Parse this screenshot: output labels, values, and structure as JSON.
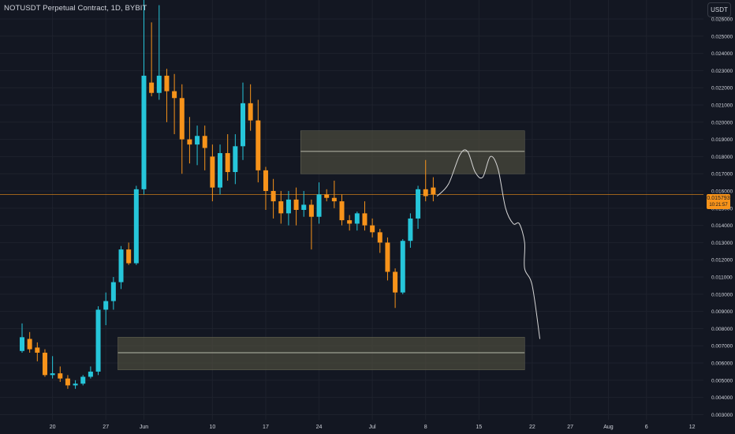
{
  "header": {
    "symbol_title": "NOTUSDT Perpetual Contract, 1D, BYBIT",
    "currency": "USDT"
  },
  "price_tag": {
    "price": "0.015793",
    "countdown": "10:21:57"
  },
  "colors": {
    "background": "#131722",
    "grid": "#1e222d",
    "bullish": "#26c6da",
    "bearish": "#f7931a",
    "zone_fill": "#4a4a3c",
    "zone_midline": "#e0e0d0",
    "projection": "#d6d6d6",
    "last_price_line": "#f7931a"
  },
  "chart_data": {
    "type": "candlestick",
    "interval": "1D",
    "start_date": "2024-05-16",
    "ylim": [
      0.0027,
      0.0271
    ],
    "y_ticks": [
      "0.003000",
      "0.004000",
      "0.005000",
      "0.006000",
      "0.007000",
      "0.008000",
      "0.009000",
      "0.010000",
      "0.011000",
      "0.012000",
      "0.013000",
      "0.014000",
      "0.015000",
      "0.016000",
      "0.017000",
      "0.018000",
      "0.019000",
      "0.020000",
      "0.021000",
      "0.022000",
      "0.023000",
      "0.024000",
      "0.025000",
      "0.026000"
    ],
    "x_ticks": [
      {
        "label": "20",
        "date": "2024-05-20"
      },
      {
        "label": "27",
        "date": "2024-05-27"
      },
      {
        "label": "Jun",
        "date": "2024-06-01"
      },
      {
        "label": "10",
        "date": "2024-06-10"
      },
      {
        "label": "17",
        "date": "2024-06-17"
      },
      {
        "label": "24",
        "date": "2024-06-24"
      },
      {
        "label": "Jul",
        "date": "2024-07-01"
      },
      {
        "label": "8",
        "date": "2024-07-08"
      },
      {
        "label": "15",
        "date": "2024-07-15"
      },
      {
        "label": "22",
        "date": "2024-07-22"
      },
      {
        "label": "27",
        "date": "2024-07-27"
      },
      {
        "label": "Aug",
        "date": "2024-08-01"
      },
      {
        "label": "6",
        "date": "2024-08-06"
      },
      {
        "label": "12",
        "date": "2024-08-12"
      }
    ],
    "candles": [
      {
        "o": 0.0067,
        "h": 0.0083,
        "l": 0.0066,
        "c": 0.0075
      },
      {
        "o": 0.0074,
        "h": 0.0078,
        "l": 0.0066,
        "c": 0.0068
      },
      {
        "o": 0.0069,
        "h": 0.0072,
        "l": 0.0061,
        "c": 0.0066
      },
      {
        "o": 0.0066,
        "h": 0.0068,
        "l": 0.0052,
        "c": 0.0053
      },
      {
        "o": 0.0053,
        "h": 0.0064,
        "l": 0.0051,
        "c": 0.0054
      },
      {
        "o": 0.0054,
        "h": 0.0058,
        "l": 0.0049,
        "c": 0.0051
      },
      {
        "o": 0.0051,
        "h": 0.0053,
        "l": 0.0045,
        "c": 0.0047
      },
      {
        "o": 0.0047,
        "h": 0.005,
        "l": 0.0045,
        "c": 0.0048
      },
      {
        "o": 0.0048,
        "h": 0.0053,
        "l": 0.0047,
        "c": 0.0052
      },
      {
        "o": 0.0052,
        "h": 0.0058,
        "l": 0.0051,
        "c": 0.0055
      },
      {
        "o": 0.0055,
        "h": 0.0093,
        "l": 0.0053,
        "c": 0.0091
      },
      {
        "o": 0.0091,
        "h": 0.0101,
        "l": 0.0082,
        "c": 0.0096
      },
      {
        "o": 0.0096,
        "h": 0.011,
        "l": 0.0091,
        "c": 0.0107
      },
      {
        "o": 0.0107,
        "h": 0.0128,
        "l": 0.0103,
        "c": 0.0126
      },
      {
        "o": 0.0126,
        "h": 0.013,
        "l": 0.0117,
        "c": 0.0118
      },
      {
        "o": 0.0118,
        "h": 0.0163,
        "l": 0.0117,
        "c": 0.0161
      },
      {
        "o": 0.0161,
        "h": 0.0271,
        "l": 0.0158,
        "c": 0.0227
      },
      {
        "o": 0.0223,
        "h": 0.0258,
        "l": 0.0215,
        "c": 0.0217
      },
      {
        "o": 0.0217,
        "h": 0.0268,
        "l": 0.0213,
        "c": 0.0227
      },
      {
        "o": 0.0227,
        "h": 0.0231,
        "l": 0.02,
        "c": 0.0218
      },
      {
        "o": 0.0218,
        "h": 0.0228,
        "l": 0.0193,
        "c": 0.0214
      },
      {
        "o": 0.0214,
        "h": 0.0222,
        "l": 0.017,
        "c": 0.019
      },
      {
        "o": 0.019,
        "h": 0.0203,
        "l": 0.0176,
        "c": 0.0187
      },
      {
        "o": 0.0187,
        "h": 0.0198,
        "l": 0.0175,
        "c": 0.0192
      },
      {
        "o": 0.0192,
        "h": 0.0198,
        "l": 0.0172,
        "c": 0.0185
      },
      {
        "o": 0.018,
        "h": 0.0187,
        "l": 0.0154,
        "c": 0.0162
      },
      {
        "o": 0.0162,
        "h": 0.0187,
        "l": 0.0158,
        "c": 0.0182
      },
      {
        "o": 0.0182,
        "h": 0.0193,
        "l": 0.0166,
        "c": 0.0171
      },
      {
        "o": 0.0171,
        "h": 0.0193,
        "l": 0.0164,
        "c": 0.0186
      },
      {
        "o": 0.0186,
        "h": 0.0223,
        "l": 0.0178,
        "c": 0.0211
      },
      {
        "o": 0.0211,
        "h": 0.0222,
        "l": 0.0195,
        "c": 0.0201
      },
      {
        "o": 0.0201,
        "h": 0.0213,
        "l": 0.0165,
        "c": 0.0172
      },
      {
        "o": 0.0172,
        "h": 0.0174,
        "l": 0.0149,
        "c": 0.016
      },
      {
        "o": 0.016,
        "h": 0.0167,
        "l": 0.0144,
        "c": 0.0154
      },
      {
        "o": 0.0154,
        "h": 0.016,
        "l": 0.0141,
        "c": 0.0147
      },
      {
        "o": 0.0147,
        "h": 0.016,
        "l": 0.014,
        "c": 0.0155
      },
      {
        "o": 0.0155,
        "h": 0.0162,
        "l": 0.014,
        "c": 0.0149
      },
      {
        "o": 0.0149,
        "h": 0.016,
        "l": 0.0145,
        "c": 0.0152
      },
      {
        "o": 0.0152,
        "h": 0.0155,
        "l": 0.0126,
        "c": 0.0145
      },
      {
        "o": 0.0145,
        "h": 0.0165,
        "l": 0.0141,
        "c": 0.0158
      },
      {
        "o": 0.0158,
        "h": 0.0161,
        "l": 0.0154,
        "c": 0.0156
      },
      {
        "o": 0.0156,
        "h": 0.0166,
        "l": 0.015,
        "c": 0.0154
      },
      {
        "o": 0.0154,
        "h": 0.0158,
        "l": 0.014,
        "c": 0.0143
      },
      {
        "o": 0.0143,
        "h": 0.0146,
        "l": 0.0137,
        "c": 0.0141
      },
      {
        "o": 0.0141,
        "h": 0.0148,
        "l": 0.0137,
        "c": 0.0147
      },
      {
        "o": 0.0147,
        "h": 0.0154,
        "l": 0.0137,
        "c": 0.014
      },
      {
        "o": 0.014,
        "h": 0.0144,
        "l": 0.0133,
        "c": 0.0136
      },
      {
        "o": 0.0136,
        "h": 0.0138,
        "l": 0.0124,
        "c": 0.013
      },
      {
        "o": 0.013,
        "h": 0.0133,
        "l": 0.0108,
        "c": 0.0113
      },
      {
        "o": 0.0113,
        "h": 0.0115,
        "l": 0.0092,
        "c": 0.0101
      },
      {
        "o": 0.0101,
        "h": 0.0132,
        "l": 0.01,
        "c": 0.0131
      },
      {
        "o": 0.0131,
        "h": 0.0147,
        "l": 0.0127,
        "c": 0.0144
      },
      {
        "o": 0.0144,
        "h": 0.0163,
        "l": 0.0138,
        "c": 0.0161
      },
      {
        "o": 0.0161,
        "h": 0.0178,
        "l": 0.0154,
        "c": 0.0157
      },
      {
        "o": 0.0162,
        "h": 0.0168,
        "l": 0.0154,
        "c": 0.0158
      }
    ],
    "last_price": 0.015793,
    "zones": [
      {
        "top": 0.0195,
        "bottom": 0.017,
        "mid": 0.0183,
        "from_index": 37
      },
      {
        "top": 0.0075,
        "bottom": 0.0056,
        "mid": 0.0066,
        "from_index": 13
      }
    ],
    "zone_right_index": 66,
    "projection": [
      {
        "i": 54.5,
        "v": 0.0157
      },
      {
        "i": 56.0,
        "v": 0.0164
      },
      {
        "i": 57.5,
        "v": 0.0181
      },
      {
        "i": 58.5,
        "v": 0.0183
      },
      {
        "i": 59.5,
        "v": 0.0171
      },
      {
        "i": 60.5,
        "v": 0.0168
      },
      {
        "i": 61.5,
        "v": 0.018
      },
      {
        "i": 62.5,
        "v": 0.0173
      },
      {
        "i": 63.5,
        "v": 0.015
      },
      {
        "i": 64.5,
        "v": 0.0141
      },
      {
        "i": 65.3,
        "v": 0.0141
      },
      {
        "i": 66.0,
        "v": 0.013
      },
      {
        "i": 66.0,
        "v": 0.0115
      },
      {
        "i": 67.0,
        "v": 0.0105
      },
      {
        "i": 68.0,
        "v": 0.0074
      }
    ]
  }
}
